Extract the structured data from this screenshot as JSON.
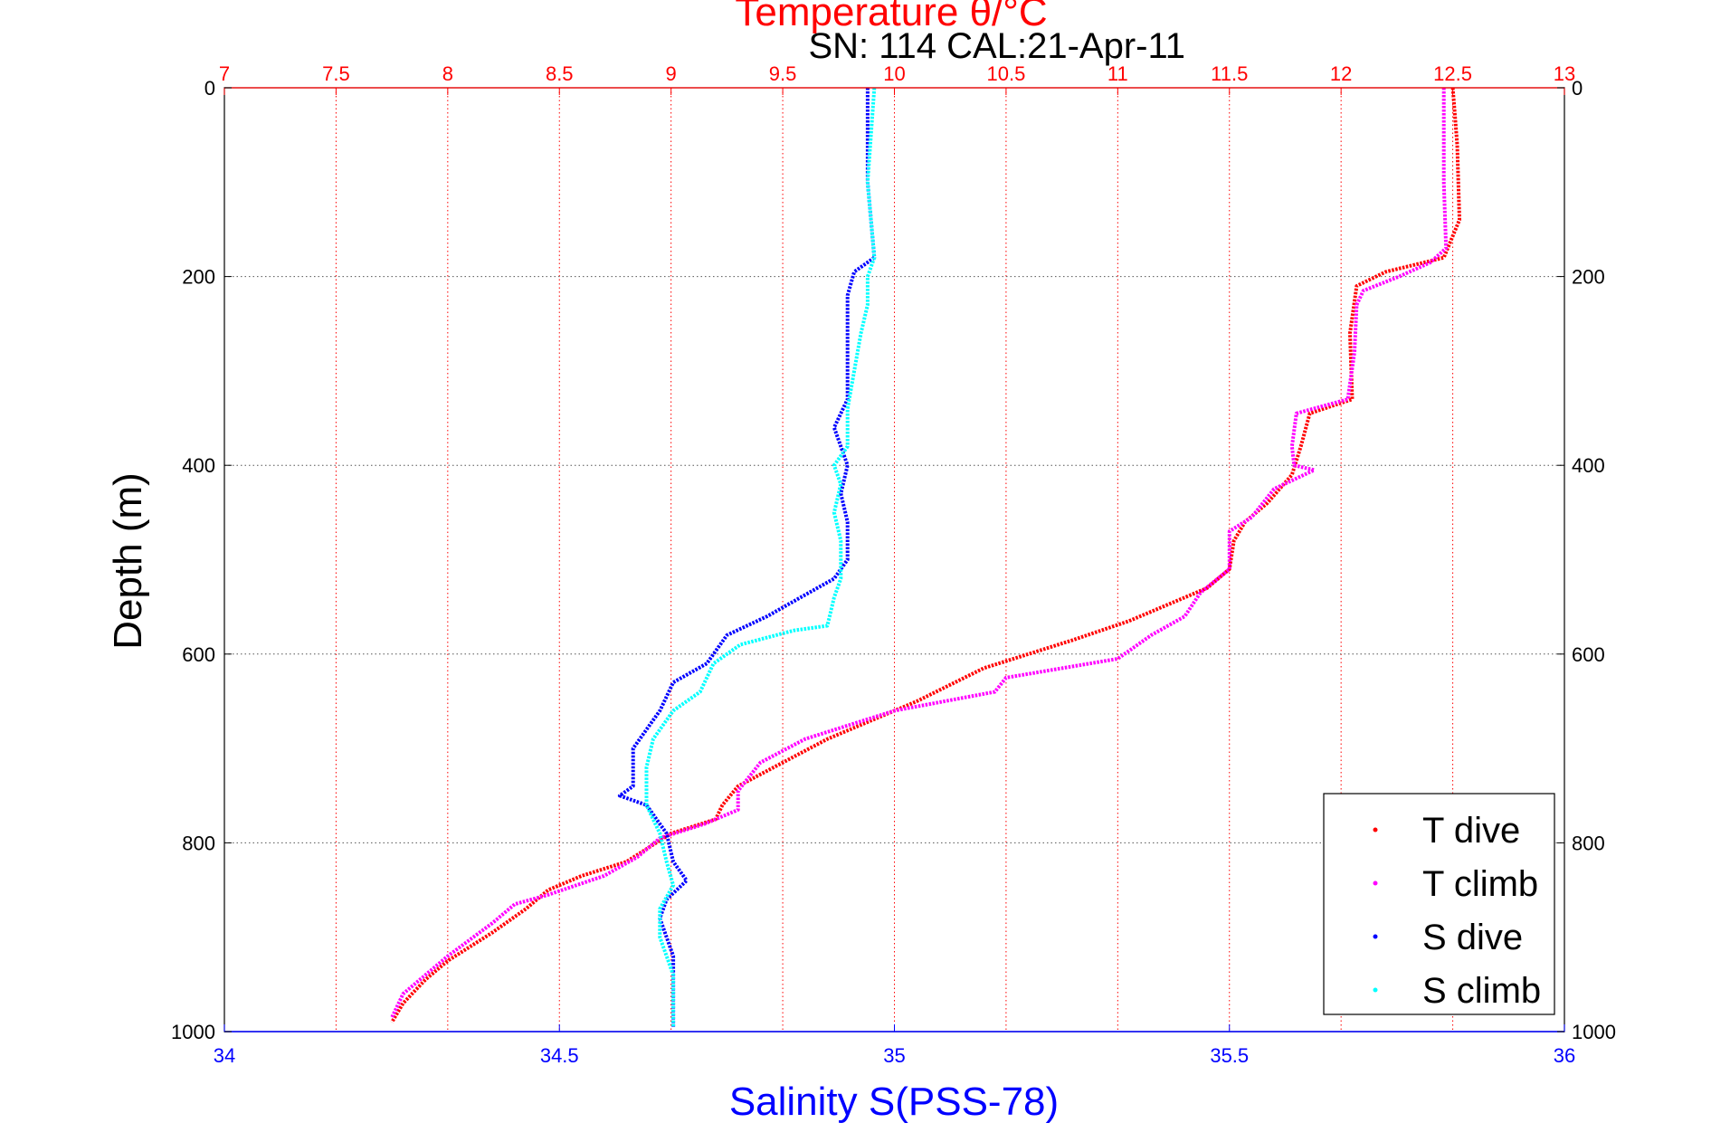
{
  "chart_data": {
    "type": "line",
    "title": "Temperature θ/°C",
    "subtitle": "SN: 114  CAL:21-Apr-11",
    "ylabel": "Depth (m)",
    "xlabel": "Salinity S(PSS-78)",
    "ylim": [
      0,
      1000
    ],
    "y_reversed": true,
    "temp_xlim": [
      7,
      13
    ],
    "sal_xlim": [
      34,
      36
    ],
    "y_ticks": [
      "0",
      "200",
      "400",
      "600",
      "800",
      "1000"
    ],
    "temp_ticks": [
      "7",
      "7.5",
      "8",
      "8.5",
      "9",
      "9.5",
      "10",
      "10.5",
      "11",
      "11.5",
      "12",
      "12.5",
      "13"
    ],
    "sal_ticks": [
      "34",
      "34.5",
      "35",
      "35.5",
      "36"
    ],
    "grid": true,
    "legend_position": "bottom-right",
    "series": [
      {
        "name": "T dive",
        "axis": "temperature",
        "color": "#ff0000",
        "points": [
          [
            12.5,
            0
          ],
          [
            12.52,
            60
          ],
          [
            12.53,
            140
          ],
          [
            12.46,
            180
          ],
          [
            12.2,
            195
          ],
          [
            12.07,
            210
          ],
          [
            12.04,
            260
          ],
          [
            12.05,
            330
          ],
          [
            11.86,
            345
          ],
          [
            11.82,
            380
          ],
          [
            11.78,
            410
          ],
          [
            11.67,
            440
          ],
          [
            11.57,
            460
          ],
          [
            11.52,
            480
          ],
          [
            11.5,
            510
          ],
          [
            11.4,
            530
          ],
          [
            11.05,
            565
          ],
          [
            10.8,
            585
          ],
          [
            10.4,
            615
          ],
          [
            10.1,
            650
          ],
          [
            9.7,
            690
          ],
          [
            9.5,
            715
          ],
          [
            9.3,
            740
          ],
          [
            9.23,
            760
          ],
          [
            9.2,
            775
          ],
          [
            9.0,
            790
          ],
          [
            8.9,
            805
          ],
          [
            8.8,
            820
          ],
          [
            8.6,
            835
          ],
          [
            8.45,
            850
          ],
          [
            8.35,
            870
          ],
          [
            8.2,
            895
          ],
          [
            8.0,
            925
          ],
          [
            7.9,
            945
          ],
          [
            7.8,
            970
          ],
          [
            7.75,
            990
          ]
        ]
      },
      {
        "name": "T climb",
        "axis": "temperature",
        "color": "#ff00ff",
        "points": [
          [
            12.46,
            0
          ],
          [
            12.46,
            100
          ],
          [
            12.47,
            170
          ],
          [
            12.4,
            185
          ],
          [
            12.26,
            200
          ],
          [
            12.1,
            215
          ],
          [
            12.07,
            230
          ],
          [
            12.06,
            280
          ],
          [
            12.03,
            330
          ],
          [
            11.8,
            345
          ],
          [
            11.78,
            380
          ],
          [
            11.79,
            400
          ],
          [
            11.88,
            405
          ],
          [
            11.7,
            425
          ],
          [
            11.6,
            455
          ],
          [
            11.5,
            470
          ],
          [
            11.5,
            510
          ],
          [
            11.37,
            535
          ],
          [
            11.3,
            560
          ],
          [
            11.15,
            580
          ],
          [
            11.0,
            605
          ],
          [
            10.5,
            625
          ],
          [
            10.45,
            640
          ],
          [
            10.0,
            660
          ],
          [
            9.6,
            690
          ],
          [
            9.4,
            715
          ],
          [
            9.3,
            745
          ],
          [
            9.3,
            765
          ],
          [
            9.15,
            780
          ],
          [
            8.95,
            795
          ],
          [
            8.85,
            815
          ],
          [
            8.7,
            835
          ],
          [
            8.45,
            855
          ],
          [
            8.3,
            865
          ],
          [
            8.2,
            885
          ],
          [
            8.0,
            920
          ],
          [
            7.8,
            960
          ],
          [
            7.75,
            985
          ]
        ]
      },
      {
        "name": "S dive",
        "axis": "salinity",
        "color": "#0000ff",
        "points": [
          [
            34.96,
            0
          ],
          [
            34.96,
            100
          ],
          [
            34.97,
            180
          ],
          [
            34.94,
            195
          ],
          [
            34.93,
            220
          ],
          [
            34.93,
            330
          ],
          [
            34.92,
            345
          ],
          [
            34.91,
            360
          ],
          [
            34.93,
            400
          ],
          [
            34.92,
            430
          ],
          [
            34.93,
            460
          ],
          [
            34.93,
            500
          ],
          [
            34.91,
            520
          ],
          [
            34.86,
            540
          ],
          [
            34.81,
            560
          ],
          [
            34.75,
            580
          ],
          [
            34.72,
            610
          ],
          [
            34.67,
            630
          ],
          [
            34.65,
            660
          ],
          [
            34.63,
            680
          ],
          [
            34.61,
            700
          ],
          [
            34.61,
            740
          ],
          [
            34.59,
            750
          ],
          [
            34.63,
            760
          ],
          [
            34.66,
            790
          ],
          [
            34.67,
            820
          ],
          [
            34.69,
            840
          ],
          [
            34.66,
            860
          ],
          [
            34.65,
            880
          ],
          [
            34.67,
            920
          ],
          [
            34.67,
            960
          ],
          [
            34.67,
            995
          ]
        ]
      },
      {
        "name": "S climb",
        "axis": "salinity",
        "color": "#00ffff",
        "points": [
          [
            34.97,
            0
          ],
          [
            34.96,
            100
          ],
          [
            34.97,
            180
          ],
          [
            34.96,
            200
          ],
          [
            34.96,
            230
          ],
          [
            34.95,
            260
          ],
          [
            34.94,
            300
          ],
          [
            34.93,
            340
          ],
          [
            34.93,
            380
          ],
          [
            34.91,
            400
          ],
          [
            34.92,
            420
          ],
          [
            34.91,
            450
          ],
          [
            34.92,
            480
          ],
          [
            34.92,
            520
          ],
          [
            34.91,
            540
          ],
          [
            34.9,
            570
          ],
          [
            34.85,
            575
          ],
          [
            34.77,
            590
          ],
          [
            34.73,
            610
          ],
          [
            34.71,
            640
          ],
          [
            34.67,
            660
          ],
          [
            34.64,
            690
          ],
          [
            34.63,
            720
          ],
          [
            34.63,
            760
          ],
          [
            34.65,
            790
          ],
          [
            34.66,
            820
          ],
          [
            34.67,
            845
          ],
          [
            34.65,
            870
          ],
          [
            34.65,
            900
          ],
          [
            34.67,
            940
          ],
          [
            34.67,
            995
          ]
        ]
      }
    ]
  }
}
